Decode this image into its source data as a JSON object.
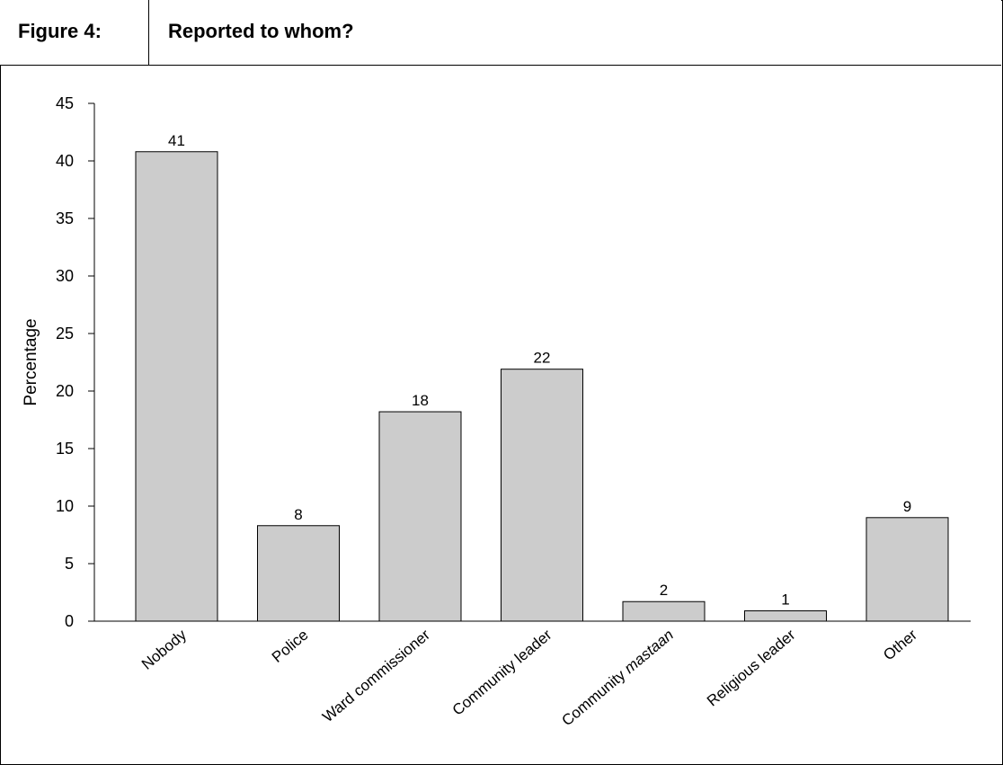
{
  "header": {
    "figure_label": "Figure 4:",
    "title": "Reported to whom?"
  },
  "chart_data": {
    "type": "bar",
    "title": "Reported to whom?",
    "ylabel": "Percentage",
    "xlabel": "",
    "ylim": [
      0,
      45
    ],
    "yticks": [
      0,
      5,
      10,
      15,
      20,
      25,
      30,
      35,
      40,
      45
    ],
    "categories": [
      {
        "label": "Nobody",
        "italic_part": ""
      },
      {
        "label": "Police",
        "italic_part": ""
      },
      {
        "label": "Ward commissioner",
        "italic_part": ""
      },
      {
        "label": "Community leader",
        "italic_part": ""
      },
      {
        "label": "Community ",
        "italic_part": "mastaan"
      },
      {
        "label": "Religious leader",
        "italic_part": ""
      },
      {
        "label": "Other",
        "italic_part": ""
      }
    ],
    "values": [
      40.8,
      8.3,
      18.2,
      21.9,
      1.7,
      0.9,
      9
    ],
    "data_labels": [
      "41",
      "8",
      "18",
      "22",
      "2",
      "1",
      "9"
    ],
    "bar_color": "#cccccc",
    "grid": false,
    "legend": "none"
  }
}
